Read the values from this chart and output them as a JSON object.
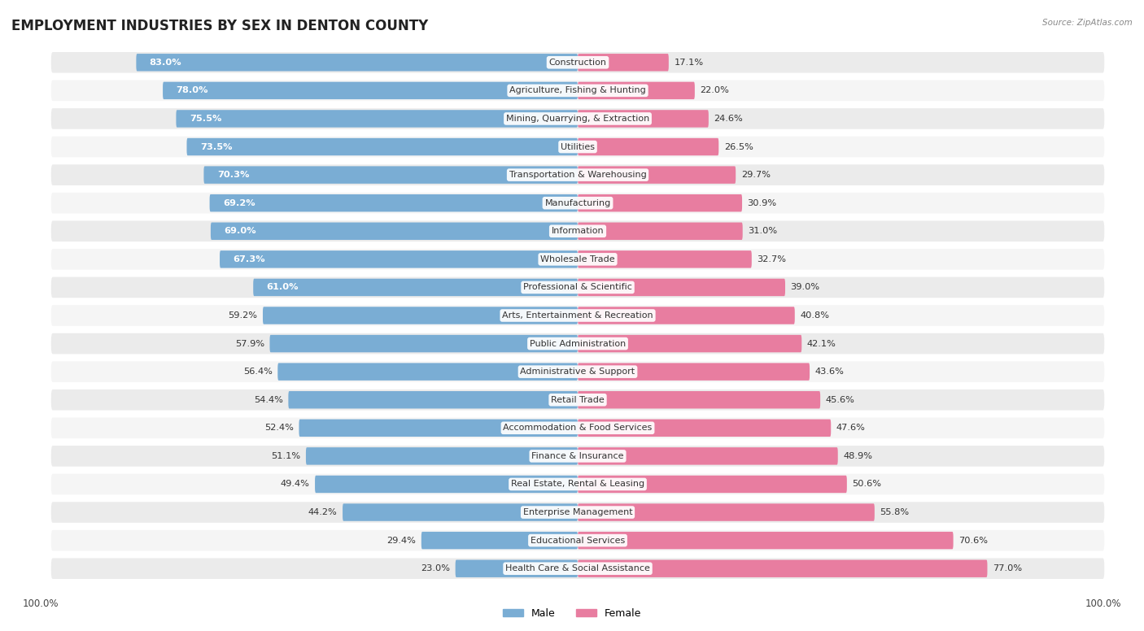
{
  "title": "EMPLOYMENT INDUSTRIES BY SEX IN DENTON COUNTY",
  "source": "Source: ZipAtlas.com",
  "categories": [
    "Construction",
    "Agriculture, Fishing & Hunting",
    "Mining, Quarrying, & Extraction",
    "Utilities",
    "Transportation & Warehousing",
    "Manufacturing",
    "Information",
    "Wholesale Trade",
    "Professional & Scientific",
    "Arts, Entertainment & Recreation",
    "Public Administration",
    "Administrative & Support",
    "Retail Trade",
    "Accommodation & Food Services",
    "Finance & Insurance",
    "Real Estate, Rental & Leasing",
    "Enterprise Management",
    "Educational Services",
    "Health Care & Social Assistance"
  ],
  "male": [
    83.0,
    78.0,
    75.5,
    73.5,
    70.3,
    69.2,
    69.0,
    67.3,
    61.0,
    59.2,
    57.9,
    56.4,
    54.4,
    52.4,
    51.1,
    49.4,
    44.2,
    29.4,
    23.0
  ],
  "female": [
    17.1,
    22.0,
    24.6,
    26.5,
    29.7,
    30.9,
    31.0,
    32.7,
    39.0,
    40.8,
    42.1,
    43.6,
    45.6,
    47.6,
    48.9,
    50.6,
    55.8,
    70.6,
    77.0
  ],
  "male_color": "#7aadd4",
  "female_color": "#e87da0",
  "bg_color": "#ffffff",
  "row_bg_color": "#e8e8e8",
  "row_alt_color": "#f5f5f5",
  "title_fontsize": 12,
  "label_fontsize": 8.2,
  "cat_fontsize": 8.0,
  "tick_fontsize": 8.5,
  "bar_height": 0.62,
  "male_label_white_threshold": 61.0,
  "female_label_white_threshold": 39.0
}
